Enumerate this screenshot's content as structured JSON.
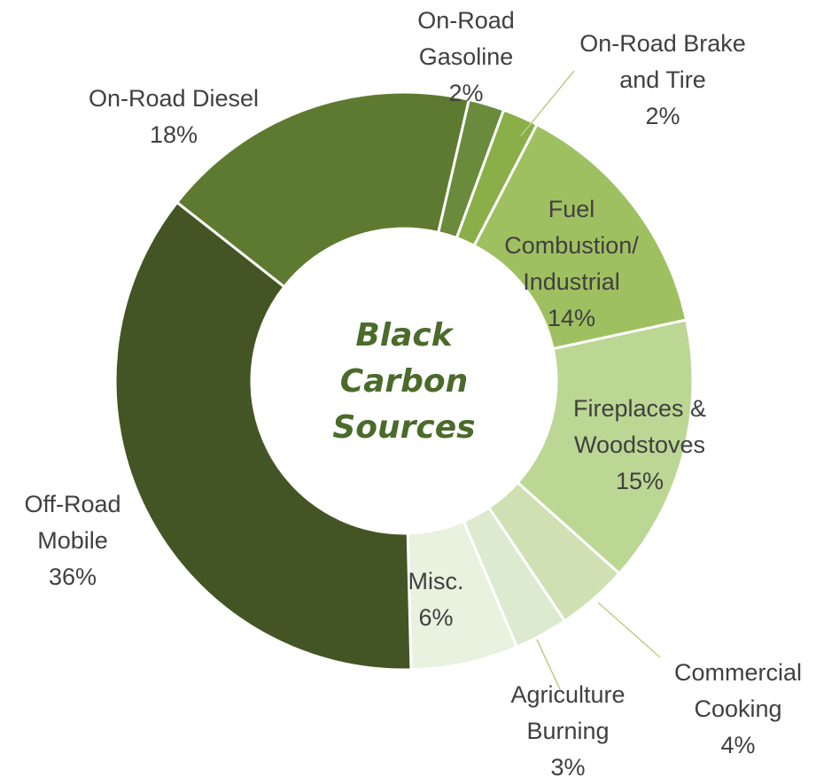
{
  "chart_data": {
    "type": "pie",
    "title": "",
    "center_label": [
      "Black",
      "Carbon",
      "Sources"
    ],
    "slices": [
      {
        "label": [
          "On-Road",
          "Gasoline"
        ],
        "value": 2,
        "value_label": "2%",
        "color": "#6a8a3c"
      },
      {
        "label": [
          "On-Road Brake",
          "and Tire"
        ],
        "value": 2,
        "value_label": "2%",
        "color": "#8aae48"
      },
      {
        "label": [
          "Fuel",
          "Combustion/",
          "Industrial"
        ],
        "value": 14,
        "value_label": "14%",
        "color": "#9fc060"
      },
      {
        "label": [
          "Fireplaces &",
          "Woodstoves"
        ],
        "value": 15,
        "value_label": "15%",
        "color": "#bcd694"
      },
      {
        "label": [
          "Commercial",
          "Cooking"
        ],
        "value": 4,
        "value_label": "4%",
        "color": "#cfe1b3"
      },
      {
        "label": [
          "Agriculture",
          "Burning"
        ],
        "value": 3,
        "value_label": "3%",
        "color": "#dcead0"
      },
      {
        "label": [
          "Misc."
        ],
        "value": 6,
        "value_label": "6%",
        "color": "#e9f1df"
      },
      {
        "label": [
          "Off-Road",
          "Mobile"
        ],
        "value": 36,
        "value_label": "36%",
        "color": "#435524"
      },
      {
        "label": [
          "On-Road Diesel"
        ],
        "value": 18,
        "value_label": "18%",
        "color": "#5e7a30"
      }
    ]
  }
}
